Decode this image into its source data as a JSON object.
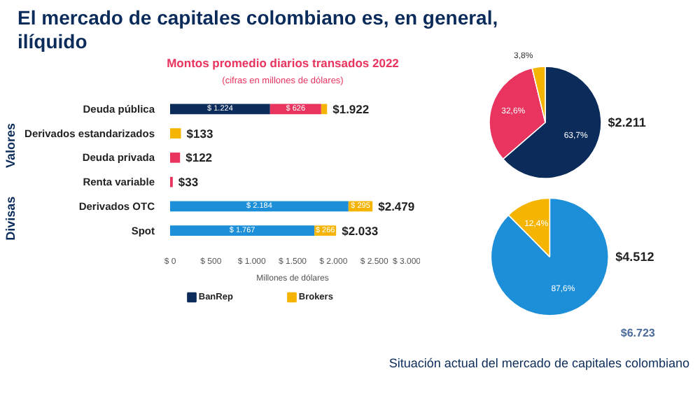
{
  "chart_data": [
    {
      "type": "bar",
      "orientation": "horizontal",
      "stacked": true,
      "title": "Montos promedio diarios transados 2022",
      "subtitle": "(cifras en millones de dólares)",
      "xlabel": "Millones de dólares",
      "categories": [
        "Deuda pública",
        "Derivados estandarizados",
        "Deuda privada",
        "Renta variable",
        "Derivados OTC",
        "Spot"
      ],
      "series": [
        {
          "name": "BanRep",
          "color": "#0b2c5a",
          "values": [
            1224,
            null,
            null,
            null,
            null,
            null
          ],
          "value_labels": [
            "$ 1.224",
            null,
            null,
            null,
            null,
            null
          ]
        },
        {
          "color": "#e8345e",
          "values": [
            626,
            null,
            122,
            33,
            null,
            null
          ],
          "value_labels": [
            "$ 626",
            null,
            null,
            null,
            null,
            null
          ]
        },
        {
          "color": "#1d8fd8",
          "values": [
            null,
            null,
            null,
            null,
            2184,
            1767
          ],
          "value_labels": [
            null,
            null,
            null,
            null,
            "$ 2.184",
            "$ 1.767"
          ]
        },
        {
          "name": "Brokers",
          "color": "#f5b400",
          "values": [
            72,
            133,
            null,
            null,
            295,
            266
          ],
          "value_labels": [
            null,
            null,
            null,
            null,
            "$ 295",
            "$ 266"
          ]
        }
      ],
      "totals": [
        "$1.922",
        "$133",
        "$122",
        "$33",
        "$2.479",
        "$2.033"
      ],
      "xlim": [
        0,
        3000
      ],
      "xticks": [
        {
          "value": 0,
          "label": "$ 0"
        },
        {
          "value": 500,
          "label": "$ 500"
        },
        {
          "value": 1000,
          "label": "$ 1.000"
        },
        {
          "value": 1500,
          "label": "$ 1.500"
        },
        {
          "value": 2000,
          "label": "$ 2.000"
        },
        {
          "value": 2500,
          "label": "$ 2.500"
        },
        {
          "value": 3000,
          "label": "$ 3.000"
        }
      ],
      "grid": false,
      "legend": "bottom",
      "annotations": [
        "El mercado de capitales colombiano es, en general, ilíquido",
        "Valores",
        "Divisas",
        "Situación actual del mercado de capitales colombiano"
      ]
    },
    {
      "type": "pie",
      "categories": [
        null,
        null,
        null
      ],
      "values": [
        63.7,
        32.6,
        3.8
      ],
      "colors": [
        "#0b2c5a",
        "#e8345e",
        "#f5b400"
      ],
      "value_labels": [
        "63,7%",
        "32,6%",
        "3,8%"
      ],
      "annotations": [
        "$2.211"
      ]
    },
    {
      "type": "pie",
      "categories": [
        null,
        null
      ],
      "values": [
        87.6,
        12.4
      ],
      "colors": [
        "#1d8fd8",
        "#f5b400"
      ],
      "value_labels": [
        "87,6%",
        "12,4%"
      ],
      "annotations": [
        "$4.512",
        "$6.723"
      ]
    }
  ]
}
